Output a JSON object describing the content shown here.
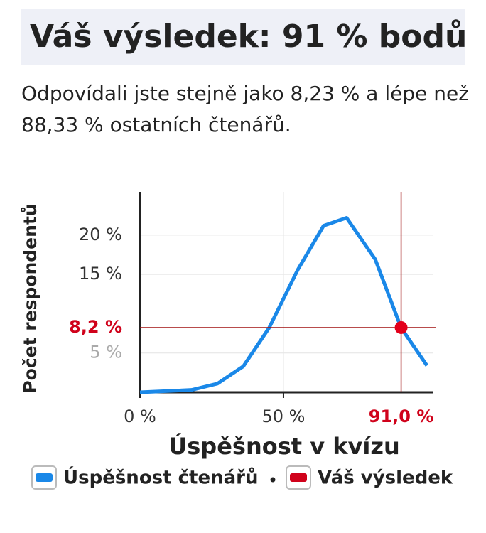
{
  "header": {
    "title": "Váš výsledek: 91 % bodů"
  },
  "summary": "Odpovídali jste stejně jako 8,23 % a lépe než 88,33 % ostatních čtenářů.",
  "chart_data": {
    "type": "line",
    "x_label": "Úspěšnost v kvízu",
    "y_label": "Počet respondentů",
    "x": [
      0,
      18,
      27,
      36,
      45,
      55,
      64,
      72,
      82,
      91,
      100
    ],
    "series": [
      {
        "name": "Úspěšnost čtenářů",
        "color": "#1a88e8",
        "values": [
          0,
          0.3,
          1.1,
          3.3,
          8.2,
          15.6,
          21.2,
          22.2,
          16.9,
          8.2,
          3.4
        ]
      }
    ],
    "result": {
      "name": "Váš výsledek",
      "color": "#d0021b",
      "x": 91,
      "y": 8.23,
      "x_label": "91,0 %",
      "y_label": "8,2 %"
    },
    "xlim": [
      0,
      102
    ],
    "ylim": [
      0,
      25.5
    ],
    "xticks": [
      {
        "value": 0,
        "label": "0 %"
      },
      {
        "value": 50,
        "label": "50 %"
      }
    ],
    "yticks": [
      {
        "value": 5,
        "label": "5 %"
      },
      {
        "value": 15,
        "label": "15 %"
      },
      {
        "value": 20,
        "label": "20 %"
      }
    ],
    "grid": true
  }
}
